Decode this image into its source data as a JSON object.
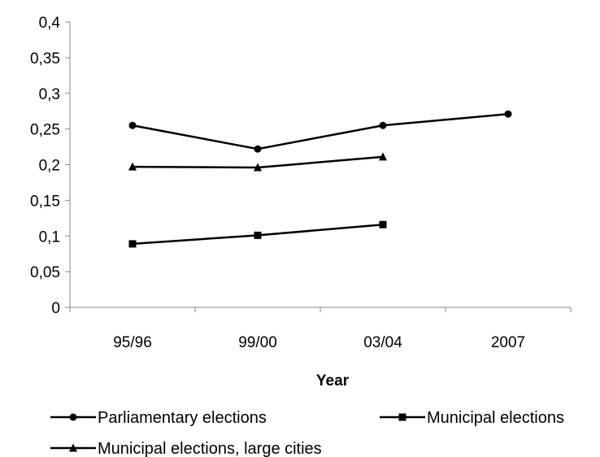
{
  "chart_data": {
    "type": "line",
    "title": "",
    "xlabel": "Year",
    "ylabel": "",
    "categories": [
      "95/96",
      "99/00",
      "03/04",
      "2007"
    ],
    "ylim": [
      0,
      0.4
    ],
    "yticks": [
      0,
      0.05,
      0.1,
      0.15,
      0.2,
      0.25,
      0.3,
      0.35,
      0.4
    ],
    "ytick_labels": [
      "0",
      "0,05",
      "0,1",
      "0,15",
      "0,2",
      "0,25",
      "0,3",
      "0,35",
      "0,4"
    ],
    "grid": false,
    "legend_position": "bottom",
    "line_color": "#000000",
    "series": [
      {
        "name": "Parliamentary elections",
        "marker": "circle",
        "values": [
          0.255,
          0.222,
          0.255,
          0.271
        ]
      },
      {
        "name": "Municipal elections",
        "marker": "square",
        "values": [
          0.089,
          0.101,
          0.116,
          null
        ]
      },
      {
        "name": "Municipal elections, large cities",
        "marker": "triangle",
        "values": [
          0.197,
          0.196,
          0.211,
          null
        ]
      }
    ]
  }
}
